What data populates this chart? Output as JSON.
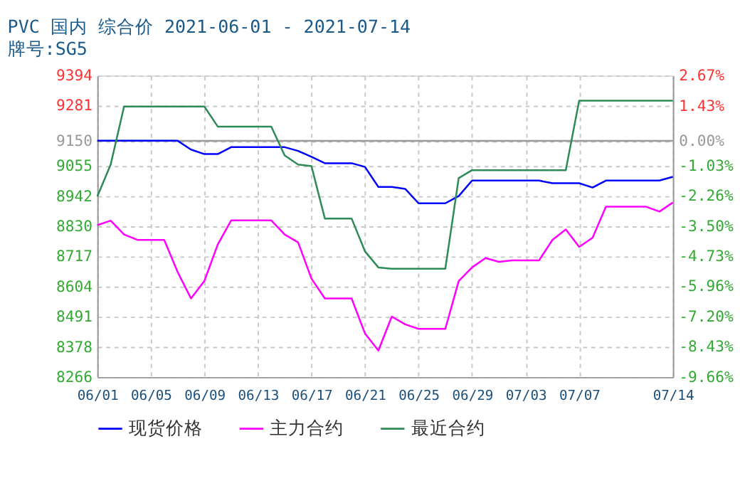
{
  "chart_data": {
    "type": "line",
    "title": "PVC 国内 综合价 2021-06-01 - 2021-07-14",
    "subtitle": "牌号:SG5",
    "x": [
      "2021-06-01",
      "2021-06-02",
      "2021-06-03",
      "2021-06-04",
      "2021-06-05",
      "2021-06-06",
      "2021-06-07",
      "2021-06-08",
      "2021-06-09",
      "2021-06-10",
      "2021-06-11",
      "2021-06-12",
      "2021-06-13",
      "2021-06-14",
      "2021-06-15",
      "2021-06-16",
      "2021-06-17",
      "2021-06-18",
      "2021-06-19",
      "2021-06-20",
      "2021-06-21",
      "2021-06-22",
      "2021-06-23",
      "2021-06-24",
      "2021-06-25",
      "2021-06-26",
      "2021-06-27",
      "2021-06-28",
      "2021-06-29",
      "2021-06-30",
      "2021-07-01",
      "2021-07-02",
      "2021-07-03",
      "2021-07-04",
      "2021-07-05",
      "2021-07-06",
      "2021-07-07",
      "2021-07-08",
      "2021-07-09",
      "2021-07-10",
      "2021-07-11",
      "2021-07-12",
      "2021-07-13",
      "2021-07-14"
    ],
    "series": [
      {
        "name": "现货价格",
        "color": "#0000ff",
        "values": [
          9150,
          9150,
          9150,
          9150,
          9150,
          9150,
          9150,
          9117,
          9100,
          9100,
          9126,
          9126,
          9126,
          9126,
          9126,
          9112,
          9090,
          9066,
          9066,
          9066,
          9052,
          8977,
          8977,
          8970,
          8916,
          8916,
          8916,
          8943,
          9001,
          9001,
          9001,
          9001,
          9001,
          9001,
          8991,
          8991,
          8991,
          8975,
          9001,
          9001,
          9001,
          9001,
          9001,
          9015
        ]
      },
      {
        "name": "主力合约",
        "color": "#ff00ff",
        "values": [
          8834,
          8851,
          8799,
          8779,
          8779,
          8779,
          8659,
          8560,
          8625,
          8762,
          8852,
          8852,
          8852,
          8852,
          8799,
          8770,
          8634,
          8560,
          8560,
          8560,
          8429,
          8365,
          8492,
          8463,
          8446,
          8446,
          8446,
          8625,
          8676,
          8711,
          8697,
          8702,
          8702,
          8702,
          8779,
          8818,
          8753,
          8787,
          8903,
          8903,
          8903,
          8903,
          8885,
          8919
        ]
      },
      {
        "name": "最近合约",
        "color": "#2e8b57",
        "values": [
          8941,
          9061,
          9278,
          9278,
          9278,
          9278,
          9278,
          9278,
          9278,
          9203,
          9203,
          9203,
          9203,
          9203,
          9095,
          9061,
          9055,
          8859,
          8859,
          8859,
          8736,
          8676,
          8671,
          8671,
          8671,
          8671,
          8671,
          9010,
          9040,
          9040,
          9040,
          9040,
          9040,
          9040,
          9040,
          9040,
          9300,
          9300,
          9300,
          9300,
          9300,
          9300,
          9300,
          9300
        ]
      }
    ],
    "xlim": [
      "2021-06-01",
      "2021-07-14"
    ],
    "xticks": [
      {
        "value": "2021-06-01",
        "label": "06/01"
      },
      {
        "value": "2021-06-05",
        "label": "06/05"
      },
      {
        "value": "2021-06-09",
        "label": "06/09"
      },
      {
        "value": "2021-06-13",
        "label": "06/13"
      },
      {
        "value": "2021-06-17",
        "label": "06/17"
      },
      {
        "value": "2021-06-21",
        "label": "06/21"
      },
      {
        "value": "2021-06-25",
        "label": "06/25"
      },
      {
        "value": "2021-06-29",
        "label": "06/29"
      },
      {
        "value": "2021-07-03",
        "label": "07/03"
      },
      {
        "value": "2021-07-07",
        "label": "07/07"
      },
      {
        "value": "2021-07-14",
        "label": "07/14"
      }
    ],
    "ylim": [
      8266,
      9394
    ],
    "yticks": [
      8266,
      8378,
      8491,
      8604,
      8717,
      8830,
      8942,
      9055,
      9150,
      9281,
      9394
    ],
    "y2lim": [
      -9.66,
      2.67
    ],
    "y2ticks": [
      {
        "value": -9.66,
        "label": "-9.66%"
      },
      {
        "value": -8.43,
        "label": "-8.43%"
      },
      {
        "value": -7.2,
        "label": "-7.20%"
      },
      {
        "value": -5.96,
        "label": "-5.96%"
      },
      {
        "value": -4.73,
        "label": "-4.73%"
      },
      {
        "value": -3.5,
        "label": "-3.50%"
      },
      {
        "value": -2.26,
        "label": "-2.26%"
      },
      {
        "value": -1.03,
        "label": "-1.03%"
      },
      {
        "value": 0,
        "label": "0.00%"
      },
      {
        "value": 1.43,
        "label": "1.43%"
      },
      {
        "value": 2.67,
        "label": "2.67%"
      }
    ],
    "ref_lines": [
      {
        "axis": "y2",
        "value": 0,
        "color": "#999999"
      }
    ],
    "grid": true,
    "legend": "bottom",
    "marker": "none",
    "line_style": "solid"
  }
}
